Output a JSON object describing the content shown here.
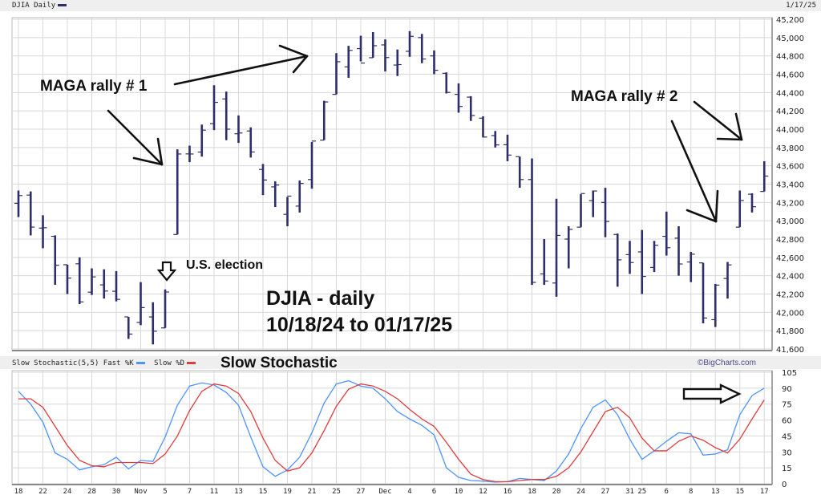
{
  "header": {
    "title": "DJIA Daily",
    "date": "1/17/25",
    "series_color": "#2e2e6a"
  },
  "stoch_header": {
    "label": "Slow Stochastic(5,5)",
    "fast_label": "Fast %K",
    "slow_label": "Slow %D",
    "overlay_title": "Slow Stochastic",
    "watermark": "©BigCharts.com"
  },
  "annotations": {
    "rally1": "MAGA rally # 1",
    "rally2": "MAGA rally # 2",
    "election": "U.S. election",
    "title_line1": "DJIA - daily",
    "title_line2": "10/18/24 to 01/17/25"
  },
  "colors": {
    "bar": "#2e2e6a",
    "fast_k": "#4d94ff",
    "slow_d": "#e03c3c",
    "grid": "#d8d8d8",
    "header_bg": "#efefef"
  },
  "chart_data": [
    {
      "type": "ohlc",
      "title": "DJIA Daily",
      "ylabel": "",
      "ylim": [
        41600,
        45200
      ],
      "yticks": [
        "41,600",
        "41,800",
        "42,000",
        "42,200",
        "42,400",
        "42,600",
        "42,800",
        "43,000",
        "43,200",
        "43,400",
        "43,600",
        "43,800",
        "44,000",
        "44,200",
        "44,400",
        "44,600",
        "44,800",
        "45,000",
        "45,200"
      ],
      "grid": true,
      "series": [
        {
          "name": "DJIA",
          "open": [
            43190,
            43280,
            42920,
            42830,
            42520,
            42530,
            42220,
            42300,
            42230,
            41950,
            41890,
            41950,
            41830,
            42850,
            43730,
            43750,
            44060,
            44330,
            43950,
            43980,
            43560,
            43370,
            43070,
            43160,
            43450,
            43880,
            44380,
            44680,
            44880,
            44780,
            44920,
            44700,
            44850,
            45000,
            44800,
            44610,
            44380,
            44350,
            44120,
            43930,
            43830,
            43700,
            43450,
            42420,
            42320,
            42800,
            42930,
            43220,
            43200,
            42850,
            42630,
            42660,
            42490,
            42830,
            42810,
            42550,
            42540,
            41920,
            42370,
            42930,
            43290,
            43320
          ],
          "high": [
            43330,
            43320,
            43060,
            42840,
            42520,
            42600,
            42480,
            42470,
            42450,
            41950,
            42330,
            42110,
            42250,
            43780,
            43820,
            44050,
            44480,
            44410,
            44150,
            44020,
            43620,
            43430,
            43260,
            43440,
            43860,
            44310,
            44830,
            44910,
            45020,
            45060,
            44980,
            44870,
            45070,
            45040,
            44860,
            44620,
            44500,
            44360,
            44140,
            43980,
            43940,
            43700,
            43680,
            42800,
            43240,
            42940,
            43290,
            43330,
            43360,
            42860,
            42780,
            42900,
            42780,
            43100,
            42940,
            42660,
            42540,
            42310,
            42550,
            43330,
            43300,
            43650
          ],
          "low": [
            43040,
            42840,
            42700,
            42300,
            42200,
            42090,
            42190,
            42150,
            42120,
            41710,
            41860,
            41650,
            41830,
            42850,
            43640,
            43700,
            43990,
            43880,
            43850,
            43690,
            43280,
            43150,
            42940,
            43090,
            43350,
            43880,
            44380,
            44560,
            44740,
            44780,
            44630,
            44580,
            44790,
            44720,
            44600,
            44390,
            44180,
            44090,
            43910,
            43800,
            43650,
            43360,
            42300,
            42300,
            42170,
            42480,
            42930,
            43040,
            42820,
            42280,
            42420,
            42200,
            42440,
            42620,
            42400,
            42330,
            41880,
            41840,
            42150,
            42930,
            43090,
            43320
          ],
          "close": [
            43275,
            42931,
            42924,
            42514,
            42374,
            42114,
            42387,
            42233,
            42142,
            41763,
            42052,
            41794,
            42222,
            43729,
            43729,
            43989,
            44293,
            44000,
            43958,
            43751,
            43445,
            43390,
            43269,
            43408,
            43870,
            44297,
            44736,
            44860,
            44722,
            44911,
            44782,
            44705,
            45014,
            44766,
            44643,
            44401,
            44248,
            44149,
            43914,
            43828,
            43717,
            43450,
            42327,
            42342,
            42840,
            42906,
            43297,
            43325,
            42992,
            42573,
            42544,
            42392,
            42732,
            42706,
            42528,
            42635,
            41938,
            42297,
            42518,
            43221,
            43153,
            43488
          ]
        }
      ]
    },
    {
      "type": "line",
      "title": "Slow Stochastic(5,5)",
      "ylim": [
        0,
        105
      ],
      "yticks": [
        "0",
        "15",
        "30",
        "45",
        "60",
        "75",
        "90",
        "105"
      ],
      "grid": true,
      "legend": "top-left",
      "xtick_labels": [
        "18",
        "22",
        "24",
        "28",
        "30",
        "Nov",
        "5",
        "7",
        "11",
        "13",
        "15",
        "19",
        "21",
        "25",
        "27",
        "Dec",
        "4",
        "6",
        "10",
        "12",
        "16",
        "18",
        "20",
        "24",
        "27",
        "31",
        "25",
        "6",
        "8",
        "13",
        "15",
        "17"
      ],
      "xtick_bar_index": [
        0,
        2,
        4,
        6,
        8,
        10,
        12,
        14,
        16,
        18,
        20,
        22,
        24,
        26,
        28,
        30,
        32,
        34,
        36,
        38,
        40,
        42,
        44,
        46,
        48,
        50,
        51,
        53,
        55,
        57,
        59,
        61
      ],
      "series": [
        {
          "name": "Fast %K",
          "values": [
            87,
            75,
            58,
            29,
            23,
            13,
            16,
            18,
            25,
            14,
            22,
            21,
            44,
            74,
            92,
            95,
            93,
            86,
            74,
            44,
            16,
            7,
            13,
            25,
            48,
            76,
            94,
            97,
            92,
            90,
            80,
            68,
            61,
            55,
            46,
            15,
            6,
            3,
            2.5,
            1.5,
            2,
            5,
            4,
            3,
            12,
            28,
            52,
            72,
            79,
            65,
            42,
            23,
            31,
            40,
            48,
            47,
            27,
            28,
            32,
            65,
            83,
            90
          ]
        },
        {
          "name": "Slow %D",
          "values": [
            80,
            80,
            72,
            54,
            36,
            22,
            17,
            16,
            20,
            20,
            20,
            19,
            28,
            45,
            69,
            87,
            94,
            92,
            85,
            68,
            43,
            22,
            12,
            15,
            29,
            50,
            73,
            89,
            94,
            92,
            87,
            80,
            70,
            61,
            54,
            39,
            23,
            9,
            4,
            2,
            2,
            3,
            4,
            4,
            7,
            15,
            30,
            49,
            68,
            72,
            62,
            43,
            31,
            31,
            40,
            45,
            41,
            34,
            29,
            42,
            61,
            79
          ]
        }
      ]
    }
  ]
}
